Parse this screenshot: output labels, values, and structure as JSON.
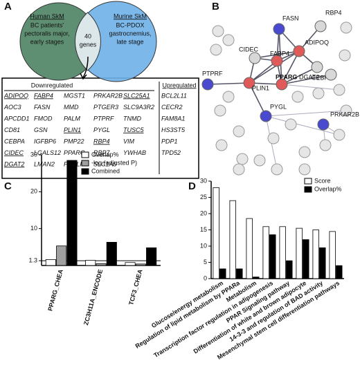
{
  "panel_labels": [
    "A",
    "B",
    "C",
    "D"
  ],
  "venn": {
    "left": {
      "title": "Human SkM",
      "lines": [
        "BC patients'",
        "pectoralis major,",
        "early stages"
      ],
      "color": "#5f8f72"
    },
    "right": {
      "title": "Murine SkM",
      "lines": [
        "BC-PDOX",
        "gastrocnemius,",
        "late stage"
      ],
      "color": "#6fb0e8"
    },
    "overlap": [
      "40",
      "genes"
    ]
  },
  "table": {
    "headers": [
      "Downregulated",
      "Upregulated"
    ],
    "rows": [
      [
        {
          "text": "ADIPOQ",
          "underline": true
        },
        {
          "text": "FABP4",
          "underline": true
        },
        "MGST1",
        "PRKAR2B",
        {
          "text": "SLC25A1",
          "underline": true
        },
        "BCL2L11"
      ],
      [
        "AOC3",
        "FASN",
        "MMD",
        "PTGER3",
        "SLC9A3R2",
        "CECR2"
      ],
      [
        "APCDD1",
        "FMOD",
        "PALM",
        "PTPRF",
        "TNMD",
        "FAM8A1"
      ],
      [
        "CD81",
        "GSN",
        {
          "text": "PLIN1",
          "underline": true
        },
        "PYGL",
        {
          "text": "TUSC5",
          "underline": true
        },
        "HS3ST5"
      ],
      [
        "CEBPA",
        "IGFBP6",
        "PMP22",
        {
          "text": "RBP4",
          "underline": true
        },
        "VIM",
        "PDP1"
      ],
      [
        {
          "text": "CIDEC",
          "underline": true
        },
        "LGALS12",
        "PPARG",
        {
          "text": "RBP7",
          "underline": true
        },
        "YWHAB",
        "TPD52"
      ],
      [
        {
          "text": "DGAT2",
          "underline": true
        },
        "LMAN2",
        "PRELP",
        "SLC1A5"
      ]
    ]
  },
  "network": {
    "nodes": [
      {
        "label": "FASN",
        "color": "#4a4ad0"
      },
      {
        "label": "RBP4",
        "color": "#d8d8d8"
      },
      {
        "label": "CIDEC",
        "color": "#d8d8d8"
      },
      {
        "label": "ADIPOQ",
        "color": "#e05a5a"
      },
      {
        "label": "FABP4",
        "color": "#e05a5a"
      },
      {
        "label": "CEBPA",
        "color": "#d8d8d8"
      },
      {
        "label": "PTPRF",
        "color": "#4a4ad0"
      },
      {
        "label": "PLIN1",
        "color": "#e05a5a"
      },
      {
        "label": "PPARG",
        "color": "#e05a5a"
      },
      {
        "label": "DGAT2",
        "color": "#d8d8d8"
      },
      {
        "label": "PYGL",
        "color": "#4a4ad0"
      },
      {
        "label": "PRKAR2B",
        "color": "#4a4ad0"
      }
    ]
  },
  "chart_data": [
    {
      "type": "bar",
      "categories": [
        "PPARG_CHEA",
        "ZC3H11A_ENCODE",
        "TCF3_CHEA"
      ],
      "series": [
        {
          "name": "Overlap%",
          "color": "#ffffff",
          "values": [
            1.6,
            1.4,
            0.8
          ]
        },
        {
          "name": "-log (adjusted P)",
          "color": "#a0a0a0",
          "values": [
            5.3,
            0.5,
            0.4
          ]
        },
        {
          "name": "Combined",
          "color": "#000000",
          "values": [
            28.5,
            6.3,
            4.8
          ]
        }
      ],
      "ylim": [
        0,
        30
      ],
      "yticks": [
        1.3,
        10,
        20,
        30
      ],
      "hline": 1.3,
      "legend": "top-right"
    },
    {
      "type": "bar",
      "categories": [
        "Glucose/energy metabolism",
        "Regulation of lipid metabolism by PPARa",
        "Metabolism",
        "Transcription factor regulation in adipogenesis",
        "PPAR Signaling pathway",
        "Differentiation of white and brown adipocyte",
        "14-3-3 and regulation of BAD activity",
        "Mesenchymal stem cell differentiation pathways"
      ],
      "series": [
        {
          "name": "Score",
          "color": "#ffffff",
          "values": [
            28,
            24,
            18.5,
            16,
            16,
            15.5,
            15,
            14.5
          ]
        },
        {
          "name": "Overlap%",
          "color": "#000000",
          "values": [
            3,
            3,
            0.5,
            13.5,
            5.5,
            12,
            9.5,
            4
          ]
        }
      ],
      "ylim": [
        0,
        30
      ],
      "yticks": [
        0,
        5,
        10,
        15,
        20,
        25,
        30
      ],
      "legend": "top-right"
    }
  ]
}
